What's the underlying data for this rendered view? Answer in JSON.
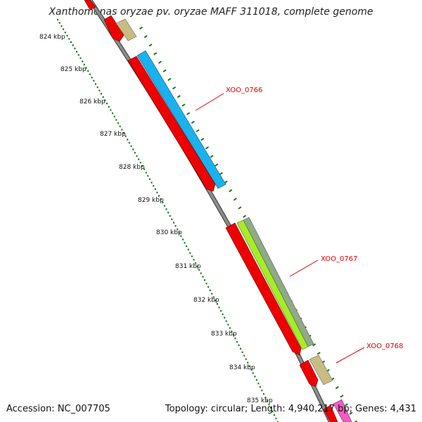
{
  "header": {
    "title": "Xanthomonas oryzae pv. oryzae MAFF 311018, complete genome"
  },
  "footer": {
    "accession": "Accession: NC_007705",
    "summary": "Topology: circular; Length: 4,940,217 bp; Genes: 4,431"
  },
  "ruler": {
    "tick_labels": [
      "824 kbp",
      "825 kbp",
      "826 kbp",
      "827 kbp",
      "828 kbp",
      "829 kbp",
      "830 kbp",
      "831 kbp",
      "832 kbp",
      "833 kbp",
      "834 kbp",
      "835 kbp"
    ]
  },
  "gene_labels": [
    "XOO_0766",
    "XOO_0767",
    "XOO_0768"
  ],
  "colors": {
    "backbone": "#8c8c8c",
    "gc_ticks": "#1a7a1a",
    "cds": "#ee0000",
    "feature_blue": "#19b2ee",
    "feature_lime": "#a6ec2a",
    "feature_olive": "#c8bc82",
    "feature_gray_green": "#8faa87",
    "feature_pink": "#f25cc0",
    "label": "#e00000"
  }
}
